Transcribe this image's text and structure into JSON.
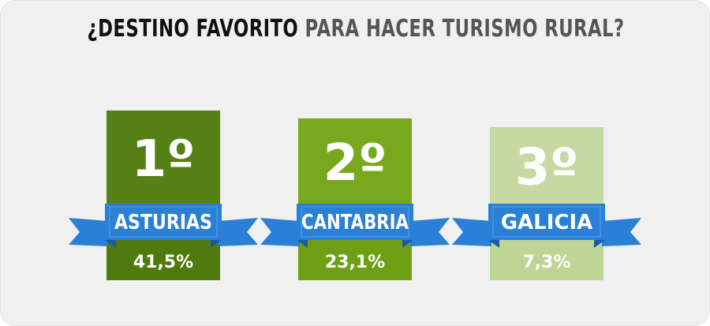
{
  "title": {
    "strong": "¿DESTINO FAVORITO",
    "light": "PARA HACER TURISMO RURAL?"
  },
  "colors": {
    "background": "#f0f0f0",
    "ribbon": "#2a7fd6",
    "ribbon_dark": "#1a5aa0",
    "first_top": "#567f16",
    "first_bottom": "#4f7a0e",
    "second_top": "#78a81e",
    "second_bottom": "#6f9f14",
    "third_top": "#c6d9a2",
    "third_bottom": "#bfd595"
  },
  "chart_data": {
    "type": "table",
    "title": "¿DESTINO FAVORITO PARA HACER TURISMO RURAL?",
    "categories": [
      "ASTURIAS",
      "CANTABRIA",
      "GALICIA"
    ],
    "ranks": [
      "1º",
      "2º",
      "3º"
    ],
    "values": [
      41.5,
      23.1,
      7.3
    ],
    "value_labels": [
      "41,5%",
      "23,1%",
      "7,3%"
    ],
    "unit": "%"
  }
}
